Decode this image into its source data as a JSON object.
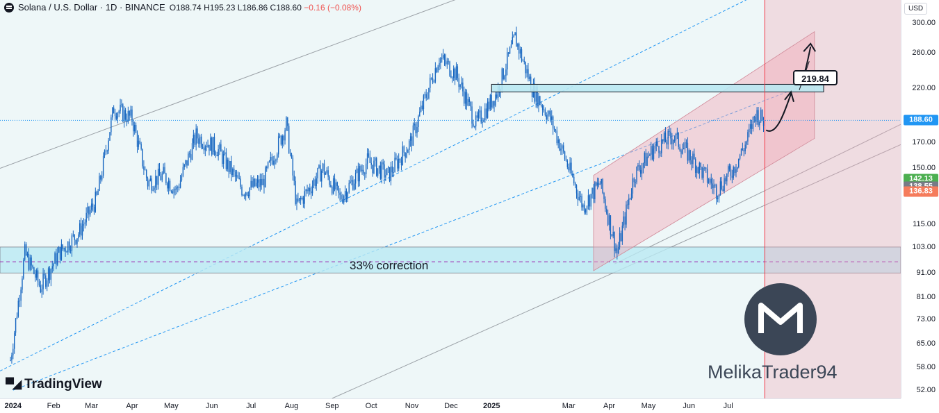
{
  "header": {
    "symbol": "Solana / U.S. Dollar · 1D · BINANCE",
    "open_label": "O",
    "open": "188.74",
    "high_label": "H",
    "high": "195.23",
    "low_label": "L",
    "low": "186.86",
    "close_label": "C",
    "close": "188.60",
    "change": "−0.16 (−0.08%)"
  },
  "currency": "USD",
  "branding": {
    "tradingview": "TradingView",
    "author": "MelikaTrader94"
  },
  "annotations": {
    "correction": "33% correction",
    "target": "219.84"
  },
  "colors": {
    "up": "#2962ff",
    "background": "#eef7f8",
    "channel_pink": "#f2a8b8",
    "support_zone": "#b9e8f2",
    "last_price": "#2196f3",
    "badge_green": "#4caf50",
    "badge_gray": "#787b86",
    "badge_orange": "#f57c5c",
    "red_line": "#f23645"
  },
  "price_badges": [
    {
      "value": "188.60",
      "color": "#2196f3"
    },
    {
      "value": "142.13",
      "color": "#4caf50"
    },
    {
      "value": "138.55",
      "color": "#787b86"
    },
    {
      "value": "136.83",
      "color": "#f57c5c"
    }
  ],
  "chart_data": {
    "type": "candlestick",
    "title": "Solana / U.S. Dollar · 1D · BINANCE",
    "y_scale": "log",
    "y_ticks": [
      "300.00",
      "260.00",
      "220.00",
      "188.60",
      "170.00",
      "150.00",
      "142.13",
      "138.55",
      "136.83",
      "115.00",
      "103.00",
      "91.00",
      "81.00",
      "73.00",
      "65.00",
      "58.00",
      "52.00"
    ],
    "x_ticks": [
      "2024",
      "Feb",
      "Mar",
      "Apr",
      "May",
      "Jun",
      "Jul",
      "Aug",
      "Sep",
      "Oct",
      "Nov",
      "Dec",
      "2025",
      "Mar",
      "Apr",
      "May",
      "Jun",
      "Jul"
    ],
    "series_close_path": [
      [
        "2023-12-30",
        60
      ],
      [
        "2024-01-10",
        100
      ],
      [
        "2024-01-22",
        85
      ],
      [
        "2024-02-05",
        100
      ],
      [
        "2024-02-20",
        110
      ],
      [
        "2024-03-05",
        130
      ],
      [
        "2024-03-18",
        200
      ],
      [
        "2024-04-01",
        190
      ],
      [
        "2024-04-13",
        140
      ],
      [
        "2024-04-25",
        145
      ],
      [
        "2024-05-05",
        135
      ],
      [
        "2024-05-20",
        175
      ],
      [
        "2024-06-05",
        165
      ],
      [
        "2024-06-25",
        135
      ],
      [
        "2024-07-10",
        140
      ],
      [
        "2024-07-28",
        185
      ],
      [
        "2024-08-05",
        125
      ],
      [
        "2024-08-25",
        150
      ],
      [
        "2024-09-07",
        130
      ],
      [
        "2024-09-28",
        155
      ],
      [
        "2024-10-14",
        145
      ],
      [
        "2024-10-31",
        170
      ],
      [
        "2024-11-10",
        205
      ],
      [
        "2024-11-22",
        255
      ],
      [
        "2024-12-05",
        235
      ],
      [
        "2024-12-20",
        185
      ],
      [
        "2025-01-05",
        215
      ],
      [
        "2025-01-19",
        280
      ],
      [
        "2025-02-01",
        220
      ],
      [
        "2025-02-15",
        190
      ],
      [
        "2025-03-01",
        150
      ],
      [
        "2025-03-12",
        125
      ],
      [
        "2025-03-25",
        140
      ],
      [
        "2025-04-07",
        100
      ],
      [
        "2025-04-20",
        145
      ],
      [
        "2025-05-05",
        165
      ],
      [
        "2025-05-20",
        175
      ],
      [
        "2025-06-05",
        155
      ],
      [
        "2025-06-22",
        135
      ],
      [
        "2025-07-05",
        150
      ],
      [
        "2025-07-15",
        170
      ],
      [
        "2025-07-22",
        195
      ],
      [
        "2025-07-28",
        188.6
      ]
    ],
    "support_zone": [
      91,
      103
    ],
    "correction_level": 96,
    "resistance_zone": [
      216,
      224
    ],
    "target": 219.84,
    "last_price": 188.6,
    "y_range": [
      50,
      335
    ],
    "x_range": [
      "2023-12-22",
      "2025-11-10"
    ]
  }
}
